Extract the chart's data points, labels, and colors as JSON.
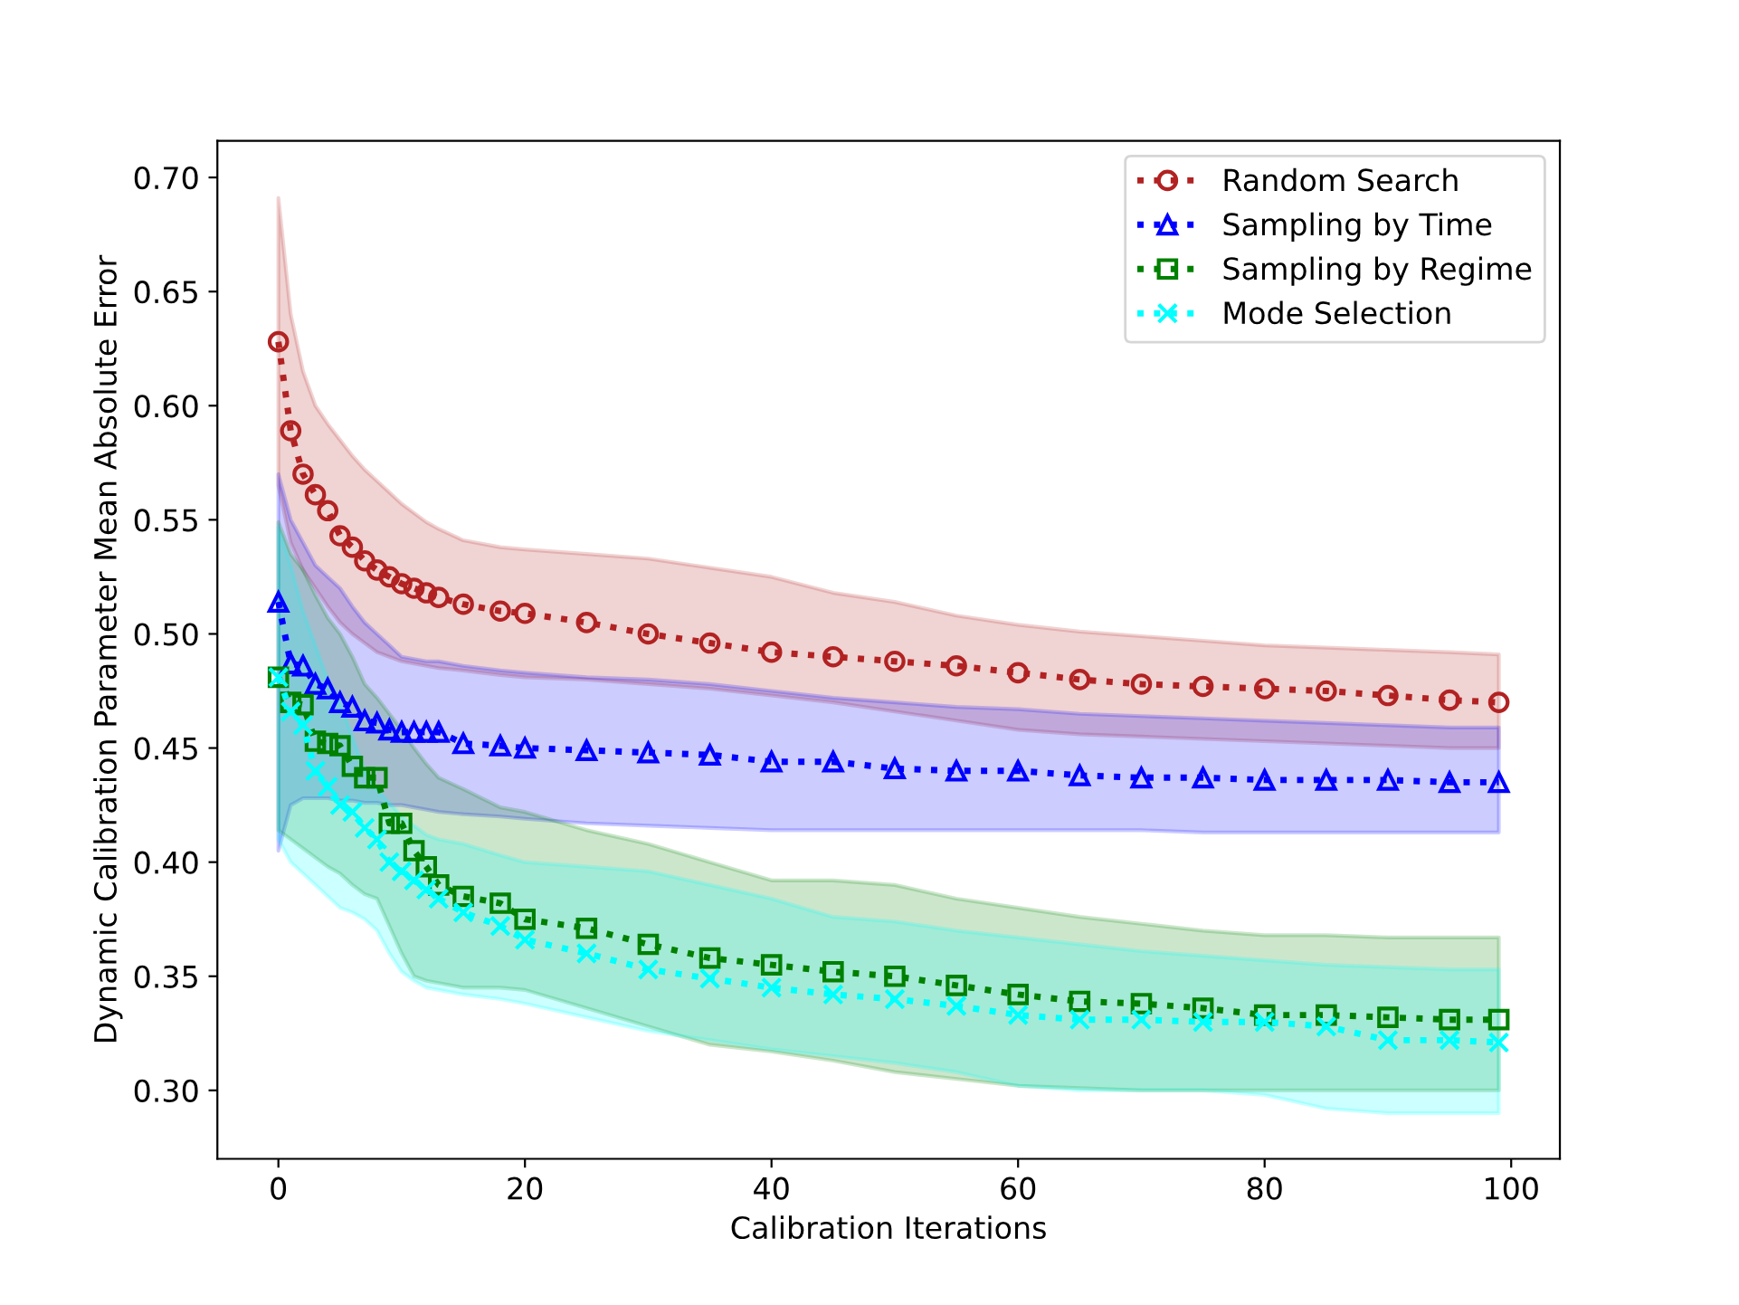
{
  "chart_data": {
    "type": "line",
    "xlabel": "Calibration Iterations",
    "ylabel": "Dynamic Calibration Parameter Mean Absolute Error",
    "x": [
      0,
      1,
      2,
      3,
      4,
      5,
      6,
      7,
      8,
      9,
      10,
      11,
      12,
      13,
      15,
      18,
      20,
      25,
      30,
      35,
      40,
      45,
      50,
      55,
      60,
      65,
      70,
      75,
      80,
      85,
      90,
      95,
      99
    ],
    "xlim": [
      -4.95,
      103.95
    ],
    "xticks": [
      0,
      20,
      40,
      60,
      80,
      100
    ],
    "ylim": [
      0.27,
      0.716
    ],
    "yticks": [
      {
        "value": 0.3,
        "label": "0.30"
      },
      {
        "value": 0.35,
        "label": "0.35"
      },
      {
        "value": 0.4,
        "label": "0.40"
      },
      {
        "value": 0.45,
        "label": "0.45"
      },
      {
        "value": 0.5,
        "label": "0.50"
      },
      {
        "value": 0.55,
        "label": "0.55"
      },
      {
        "value": 0.6,
        "label": "0.60"
      },
      {
        "value": 0.65,
        "label": "0.65"
      },
      {
        "value": 0.7,
        "label": "0.70"
      }
    ],
    "line_style": "dotted",
    "legend": "top right",
    "grid": false,
    "series": [
      {
        "name": "Random Search",
        "color": "#b22222",
        "marker": "circle",
        "values": [
          0.628,
          0.589,
          0.57,
          0.561,
          0.554,
          0.543,
          0.538,
          0.532,
          0.528,
          0.525,
          0.522,
          0.52,
          0.518,
          0.516,
          0.513,
          0.51,
          0.509,
          0.505,
          0.5,
          0.496,
          0.492,
          0.49,
          0.488,
          0.486,
          0.483,
          0.48,
          0.478,
          0.477,
          0.476,
          0.475,
          0.473,
          0.471,
          0.47
        ],
        "upper": [
          0.691,
          0.64,
          0.615,
          0.6,
          0.592,
          0.585,
          0.578,
          0.572,
          0.567,
          0.562,
          0.557,
          0.553,
          0.549,
          0.546,
          0.541,
          0.538,
          0.537,
          0.535,
          0.533,
          0.529,
          0.525,
          0.518,
          0.514,
          0.508,
          0.504,
          0.501,
          0.499,
          0.497,
          0.495,
          0.494,
          0.493,
          0.492,
          0.491
        ],
        "lower": [
          0.565,
          0.54,
          0.528,
          0.52,
          0.512,
          0.505,
          0.5,
          0.496,
          0.492,
          0.49,
          0.488,
          0.487,
          0.486,
          0.485,
          0.484,
          0.482,
          0.481,
          0.48,
          0.478,
          0.476,
          0.473,
          0.47,
          0.466,
          0.462,
          0.458,
          0.456,
          0.455,
          0.454,
          0.453,
          0.452,
          0.451,
          0.45,
          0.45
        ]
      },
      {
        "name": "Sampling by Time",
        "color": "#0000ff",
        "marker": "triangle",
        "values": [
          0.514,
          0.487,
          0.486,
          0.478,
          0.476,
          0.47,
          0.468,
          0.462,
          0.461,
          0.458,
          0.457,
          0.457,
          0.457,
          0.457,
          0.452,
          0.451,
          0.45,
          0.449,
          0.448,
          0.447,
          0.444,
          0.444,
          0.441,
          0.44,
          0.44,
          0.438,
          0.437,
          0.437,
          0.436,
          0.436,
          0.436,
          0.435,
          0.435
        ],
        "upper": [
          0.57,
          0.55,
          0.54,
          0.53,
          0.525,
          0.52,
          0.512,
          0.505,
          0.5,
          0.495,
          0.49,
          0.489,
          0.488,
          0.488,
          0.486,
          0.484,
          0.483,
          0.481,
          0.48,
          0.478,
          0.475,
          0.472,
          0.47,
          0.468,
          0.467,
          0.465,
          0.464,
          0.463,
          0.462,
          0.461,
          0.46,
          0.459,
          0.459
        ],
        "lower": [
          0.405,
          0.425,
          0.428,
          0.428,
          0.428,
          0.427,
          0.427,
          0.426,
          0.426,
          0.425,
          0.425,
          0.424,
          0.423,
          0.422,
          0.421,
          0.42,
          0.419,
          0.417,
          0.416,
          0.415,
          0.414,
          0.414,
          0.414,
          0.414,
          0.414,
          0.414,
          0.414,
          0.413,
          0.413,
          0.413,
          0.413,
          0.413,
          0.413
        ]
      },
      {
        "name": "Sampling by Regime",
        "color": "#008000",
        "marker": "square",
        "values": [
          0.481,
          0.47,
          0.469,
          0.453,
          0.452,
          0.451,
          0.442,
          0.437,
          0.437,
          0.417,
          0.417,
          0.405,
          0.398,
          0.39,
          0.385,
          0.382,
          0.375,
          0.371,
          0.364,
          0.358,
          0.355,
          0.352,
          0.35,
          0.346,
          0.342,
          0.339,
          0.338,
          0.336,
          0.333,
          0.333,
          0.332,
          0.331,
          0.331
        ],
        "upper": [
          0.549,
          0.535,
          0.528,
          0.517,
          0.507,
          0.5,
          0.49,
          0.478,
          0.472,
          0.465,
          0.458,
          0.45,
          0.443,
          0.437,
          0.432,
          0.424,
          0.422,
          0.414,
          0.408,
          0.4,
          0.392,
          0.392,
          0.39,
          0.384,
          0.38,
          0.376,
          0.373,
          0.37,
          0.368,
          0.368,
          0.367,
          0.367,
          0.367
        ],
        "lower": [
          0.414,
          0.41,
          0.406,
          0.402,
          0.398,
          0.395,
          0.39,
          0.386,
          0.384,
          0.372,
          0.36,
          0.35,
          0.348,
          0.347,
          0.345,
          0.345,
          0.344,
          0.336,
          0.328,
          0.32,
          0.317,
          0.313,
          0.308,
          0.305,
          0.302,
          0.301,
          0.3,
          0.3,
          0.3,
          0.3,
          0.3,
          0.3,
          0.3
        ]
      },
      {
        "name": "Mode Selection",
        "color": "#00ffff",
        "marker": "cross",
        "values": [
          0.481,
          0.466,
          0.46,
          0.44,
          0.433,
          0.425,
          0.422,
          0.415,
          0.41,
          0.4,
          0.396,
          0.392,
          0.388,
          0.384,
          0.378,
          0.372,
          0.366,
          0.36,
          0.353,
          0.349,
          0.345,
          0.342,
          0.34,
          0.337,
          0.333,
          0.331,
          0.331,
          0.33,
          0.33,
          0.328,
          0.322,
          0.322,
          0.321
        ],
        "upper": [
          0.547,
          0.53,
          0.51,
          0.495,
          0.48,
          0.47,
          0.455,
          0.44,
          0.432,
          0.426,
          0.42,
          0.416,
          0.412,
          0.41,
          0.408,
          0.403,
          0.4,
          0.398,
          0.396,
          0.39,
          0.384,
          0.376,
          0.374,
          0.37,
          0.367,
          0.364,
          0.361,
          0.359,
          0.357,
          0.355,
          0.354,
          0.353,
          0.353
        ],
        "lower": [
          0.41,
          0.4,
          0.395,
          0.39,
          0.385,
          0.38,
          0.378,
          0.375,
          0.37,
          0.36,
          0.352,
          0.348,
          0.345,
          0.344,
          0.342,
          0.34,
          0.338,
          0.332,
          0.326,
          0.322,
          0.318,
          0.315,
          0.312,
          0.308,
          0.302,
          0.3,
          0.3,
          0.3,
          0.298,
          0.292,
          0.29,
          0.29,
          0.29
        ]
      }
    ]
  }
}
